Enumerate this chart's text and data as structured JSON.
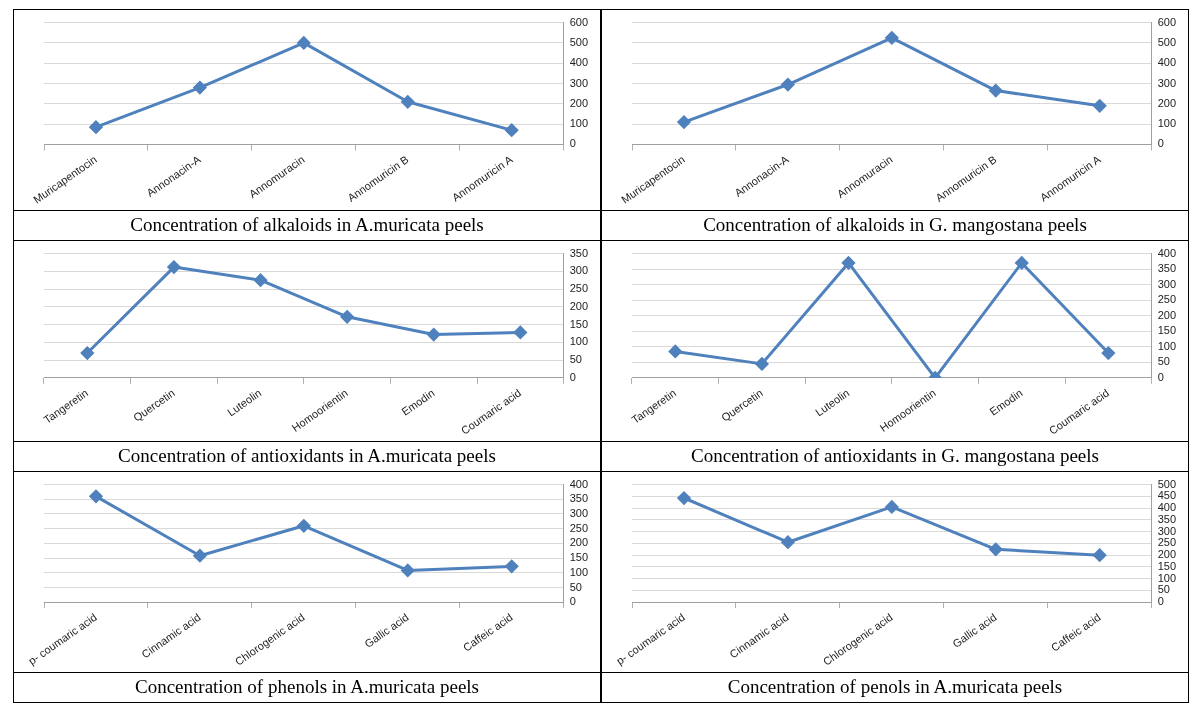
{
  "chart_data": [
    {
      "type": "line",
      "title": "Concentration of alkaloids in A.muricata peels",
      "categories": [
        "Muricapentocin",
        "Annonacin-A",
        "Annomuracin",
        "Annomuricin B",
        "Annomuricin A"
      ],
      "series": [
        {
          "color": "#4f81bd",
          "values": [
            85,
            280,
            500,
            210,
            70
          ]
        }
      ],
      "ylim": [
        0,
        600
      ],
      "yticks": [
        0,
        100,
        200,
        300,
        400,
        500,
        600
      ],
      "grid": "y",
      "marker": "diamond"
    },
    {
      "type": "line",
      "title": "Concentration of alkaloids in G. mangostana peels",
      "categories": [
        "Muricapentocin",
        "Annonacin-A",
        "Annomuracin",
        "Annomuricin B",
        "Annomuricin A"
      ],
      "series": [
        {
          "color": "#4f81bd",
          "values": [
            110,
            295,
            525,
            265,
            190
          ]
        }
      ],
      "ylim": [
        0,
        600
      ],
      "yticks": [
        0,
        100,
        200,
        300,
        400,
        500,
        600
      ],
      "grid": "y",
      "marker": "diamond"
    },
    {
      "type": "line",
      "title": "Concentration of antioxidants in A.muricata peels",
      "categories": [
        "Tangeretin",
        "Quercetin",
        "Luteolin",
        "Homoorientin",
        "Emodin",
        "Coumaric acid"
      ],
      "series": [
        {
          "color": "#4f81bd",
          "values": [
            70,
            312,
            275,
            172,
            122,
            128
          ]
        }
      ],
      "ylim": [
        0,
        350
      ],
      "yticks": [
        0,
        50,
        100,
        150,
        200,
        250,
        300,
        350
      ],
      "grid": "y",
      "marker": "diamond"
    },
    {
      "type": "line",
      "title": "Concentration of antioxidants in G. mangostana peels",
      "categories": [
        "Tangeretin",
        "Quercetin",
        "Luteolin",
        "Homoorientin",
        "Emodin",
        "Coumaric acid"
      ],
      "series": [
        {
          "color": "#4f81bd",
          "values": [
            85,
            45,
            370,
            0,
            370,
            80
          ]
        }
      ],
      "ylim": [
        0,
        400
      ],
      "yticks": [
        0,
        50,
        100,
        150,
        200,
        250,
        300,
        350,
        400
      ],
      "grid": "y",
      "marker": "diamond"
    },
    {
      "type": "line",
      "title": "Concentration of phenols in A.muricata peels",
      "categories": [
        "p- coumaric acid",
        "Cinnamic acid",
        "Chlorogenic acid",
        "Gallic acid",
        "Caffeic acid"
      ],
      "series": [
        {
          "color": "#4f81bd",
          "values": [
            360,
            158,
            260,
            108,
            122
          ]
        }
      ],
      "ylim": [
        0,
        400
      ],
      "yticks": [
        0,
        50,
        100,
        150,
        200,
        250,
        300,
        350,
        400
      ],
      "grid": "y",
      "marker": "diamond"
    },
    {
      "type": "line",
      "title": "Concentration of penols in A.muricata peels",
      "categories": [
        "p- coumaric acid",
        "Cinnamic acid",
        "Chlorogenic acid",
        "Gallic acid",
        "Caffeic acid"
      ],
      "series": [
        {
          "color": "#4f81bd",
          "values": [
            443,
            255,
            405,
            225,
            200
          ]
        }
      ],
      "ylim": [
        0,
        500
      ],
      "yticks": [
        0,
        50,
        100,
        150,
        200,
        250,
        300,
        350,
        400,
        450,
        500
      ],
      "grid": "y",
      "marker": "diamond"
    }
  ]
}
